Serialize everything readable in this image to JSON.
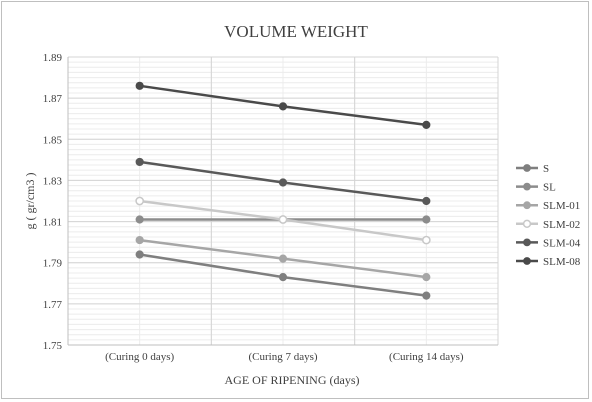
{
  "chart_data": {
    "type": "line",
    "title": "VOLUME WEIGHT",
    "xlabel": "AGE OF RIPENING (days)",
    "ylabel": "g ( gr/cm3 )",
    "categories": [
      "(Curing 0 days)",
      "(Curing 7 days)",
      "(Curing 14 days)"
    ],
    "ylim": [
      1.75,
      1.89
    ],
    "yticks": [
      "1.75",
      "1.77",
      "1.79",
      "1.81",
      "1.83",
      "1.85",
      "1.87",
      "1.89"
    ],
    "grid": true,
    "legend_position": "right",
    "series": [
      {
        "name": "S",
        "values": [
          1.794,
          1.783,
          1.774
        ],
        "color": "#7f7f7f",
        "marker": "filled"
      },
      {
        "name": "SL",
        "values": [
          1.811,
          1.811,
          1.811
        ],
        "color": "#8c8c8c",
        "marker": "filled"
      },
      {
        "name": "SLM-01",
        "values": [
          1.801,
          1.792,
          1.783
        ],
        "color": "#a6a6a6",
        "marker": "filled"
      },
      {
        "name": "SLM-02",
        "values": [
          1.82,
          1.811,
          1.801
        ],
        "color": "#c8c8c8",
        "marker": "hollow"
      },
      {
        "name": "SLM-04",
        "values": [
          1.839,
          1.829,
          1.82
        ],
        "color": "#595959",
        "marker": "filled"
      },
      {
        "name": "SLM-08",
        "values": [
          1.876,
          1.866,
          1.857
        ],
        "color": "#4a4a4a",
        "marker": "filled"
      }
    ]
  }
}
